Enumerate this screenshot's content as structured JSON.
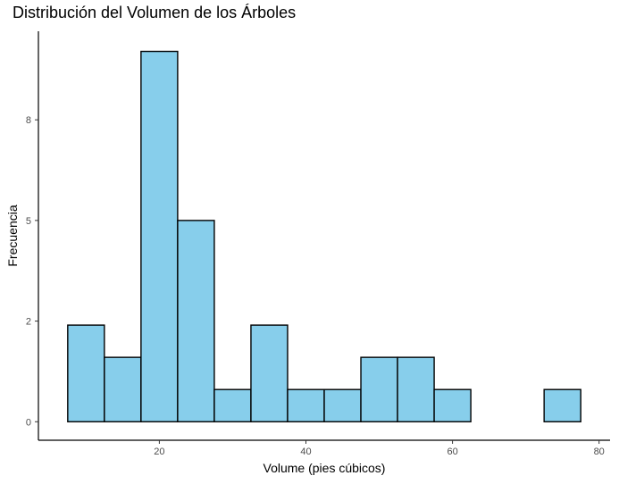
{
  "chart_data": {
    "type": "bar",
    "title": "Distribución del Volumen de los Árboles",
    "xlabel": "Volume (pies cúbicos)",
    "ylabel": "Frecuencia",
    "bin_width": 5,
    "bins": [
      {
        "start": 7.5,
        "end": 12.5,
        "count": 2.4
      },
      {
        "start": 12.5,
        "end": 17.5,
        "count": 1.6
      },
      {
        "start": 17.5,
        "end": 22.5,
        "count": 9.2
      },
      {
        "start": 22.5,
        "end": 27.5,
        "count": 5.0
      },
      {
        "start": 27.5,
        "end": 32.5,
        "count": 0.8
      },
      {
        "start": 32.5,
        "end": 37.5,
        "count": 2.4
      },
      {
        "start": 37.5,
        "end": 42.5,
        "count": 0.8
      },
      {
        "start": 42.5,
        "end": 47.5,
        "count": 0.8
      },
      {
        "start": 47.5,
        "end": 52.5,
        "count": 1.6
      },
      {
        "start": 52.5,
        "end": 57.5,
        "count": 1.6
      },
      {
        "start": 57.5,
        "end": 62.5,
        "count": 0.8
      },
      {
        "start": 62.5,
        "end": 67.5,
        "count": 0
      },
      {
        "start": 67.5,
        "end": 72.5,
        "count": 0
      },
      {
        "start": 72.5,
        "end": 77.5,
        "count": 0.8
      }
    ],
    "xlim": [
      3.5,
      81.5
    ],
    "ylim": [
      -0.46,
      9.7
    ],
    "x_ticks": [
      20,
      40,
      60,
      80
    ],
    "y_ticks": [
      0,
      2,
      5,
      8
    ],
    "x_tick_labels": [
      "20",
      "40",
      "60",
      "80"
    ],
    "y_tick_labels": [
      "0",
      "2",
      "5",
      "8"
    ],
    "y_tick_positions": [
      0,
      2.5,
      5.0,
      7.5
    ],
    "grid": false,
    "colors": {
      "fill": "#87CEEB",
      "stroke": "#000000",
      "axis": "#000000",
      "tick_label": "#4d4d4d"
    }
  }
}
